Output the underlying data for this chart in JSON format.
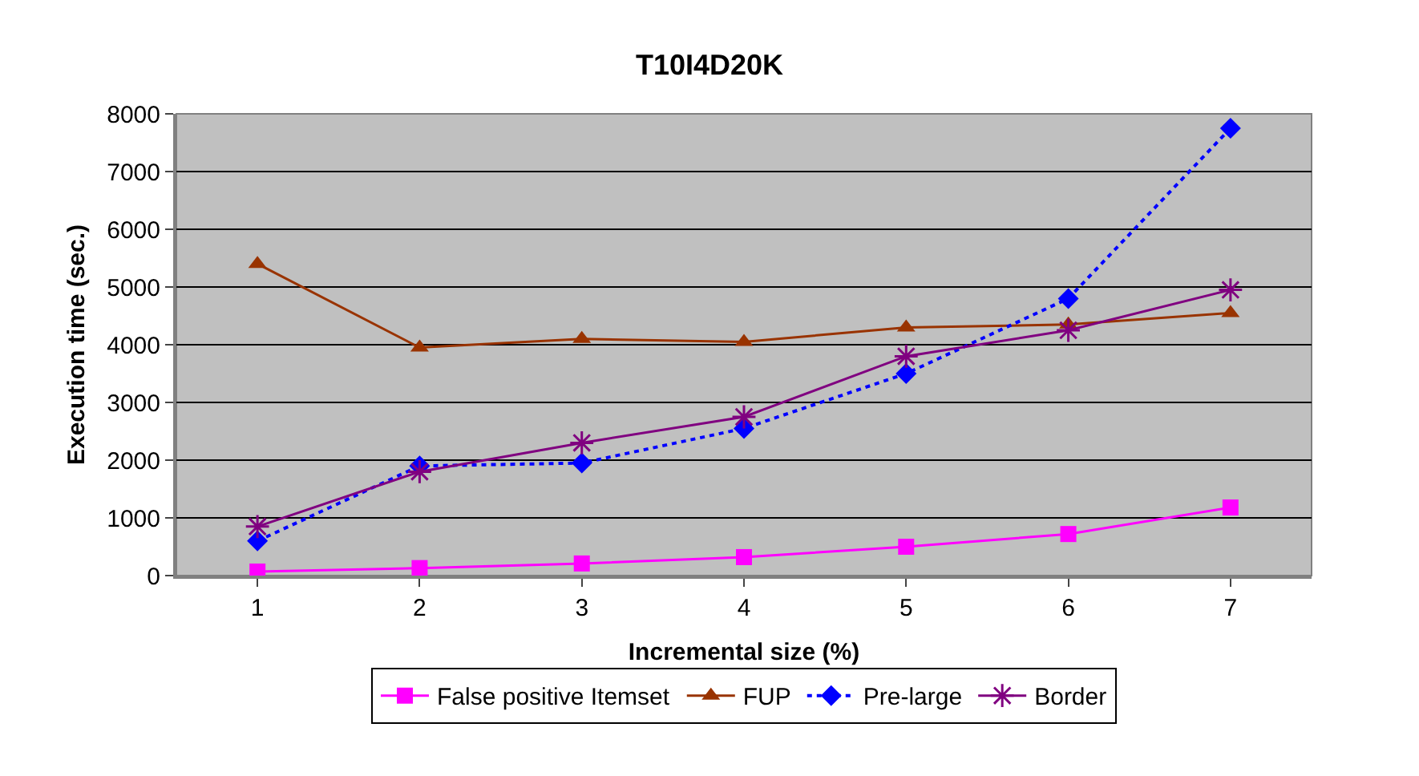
{
  "chart_data": {
    "type": "line",
    "title": "T10I4D20K",
    "xlabel": "Incremental size (%)",
    "ylabel": "Execution time (sec.)",
    "categories": [
      "1",
      "2",
      "3",
      "4",
      "5",
      "6",
      "7"
    ],
    "series": [
      {
        "name": "False positive Itemset",
        "color": "#ff00ff",
        "marker": "square",
        "line_style": "solid",
        "values": [
          70,
          130,
          210,
          320,
          500,
          720,
          1180
        ]
      },
      {
        "name": "FUP",
        "color": "#993300",
        "marker": "triangle",
        "line_style": "solid",
        "values": [
          5400,
          3950,
          4100,
          4050,
          4300,
          4350,
          4550
        ]
      },
      {
        "name": "Pre-large",
        "color": "#0000ff",
        "marker": "diamond",
        "line_style": "dotted",
        "values": [
          600,
          1900,
          1950,
          2550,
          3500,
          4800,
          7750
        ]
      },
      {
        "name": "Border",
        "color": "#800080",
        "marker": "cross",
        "line_style": "solid",
        "values": [
          850,
          1800,
          2300,
          2750,
          3800,
          4250,
          4950
        ]
      }
    ],
    "ylim": [
      0,
      8000
    ],
    "yticks": [
      0,
      1000,
      2000,
      3000,
      4000,
      5000,
      6000,
      7000,
      8000
    ],
    "grid": "y",
    "legend": "bottom"
  }
}
